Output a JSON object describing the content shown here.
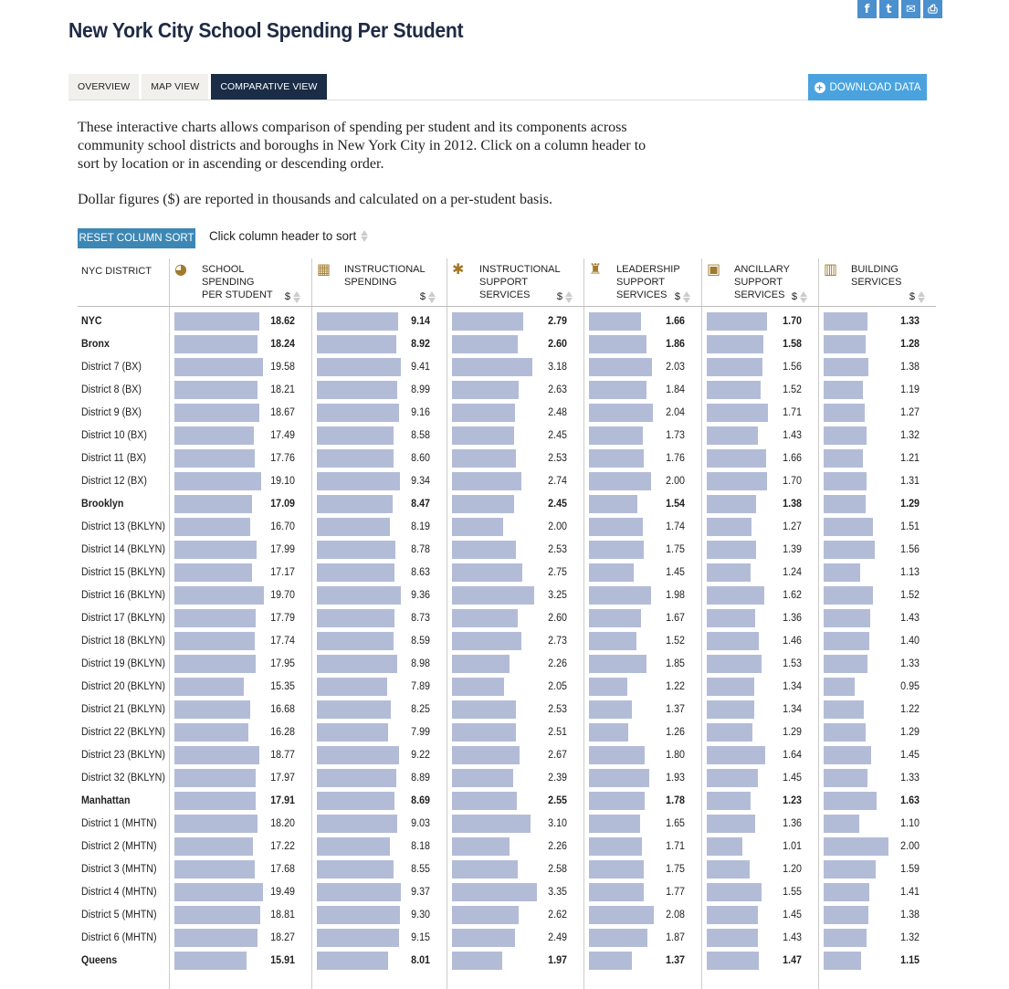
{
  "title": "New York City School Spending Per Student",
  "social": [
    {
      "icon": "facebook-icon",
      "glyph": "f"
    },
    {
      "icon": "twitter-icon",
      "glyph": "t"
    },
    {
      "icon": "email-icon",
      "glyph": "✉"
    },
    {
      "icon": "print-icon",
      "glyph": "⎙"
    }
  ],
  "tabs": [
    {
      "label": "Overview",
      "active": false
    },
    {
      "label": "Map View",
      "active": false
    },
    {
      "label": "Comparative View",
      "active": true
    }
  ],
  "download_label": "Download Data",
  "intro": "These interactive charts allows comparison of spending per student and its components across community school districts and boroughs in New York City in 2012. Click on a column header to sort by location or in ascending or descending order.",
  "intro2": "Dollar figures ($) are reported in thousands and calculated on a per-student basis.",
  "reset_label": "Reset Column Sort",
  "sort_hint": "Click column header to sort",
  "district_header": "NYC District",
  "currency_symbol": "$",
  "bar_color": "#b3bcd7",
  "icon_color": "#a27a2c",
  "columns": [
    {
      "key": "total",
      "icon": "pie-chart-icon",
      "glyph": "◕",
      "lines": [
        "School",
        "Spending",
        "Per Student"
      ],
      "max": 20.5
    },
    {
      "key": "instructional",
      "icon": "classroom-icon",
      "glyph": "▦",
      "lines": [
        "Instructional",
        "Spending"
      ],
      "max": 9.6
    },
    {
      "key": "support",
      "icon": "runner-icon",
      "glyph": "✱",
      "lines": [
        "Instructional",
        "Support",
        "Services"
      ],
      "max": 3.45
    },
    {
      "key": "leadership",
      "icon": "trophy-icon",
      "glyph": "♜",
      "lines": [
        "Leadership",
        "Support",
        "Services"
      ],
      "max": 2.2
    },
    {
      "key": "ancillary",
      "icon": "bus-icon",
      "glyph": "▣",
      "lines": [
        "Ancillary",
        "Support",
        "Services"
      ],
      "max": 1.9
    },
    {
      "key": "building",
      "icon": "building-icon",
      "glyph": "▥",
      "lines": [
        "Building",
        "Services"
      ],
      "max": 2.1
    }
  ],
  "rows": [
    {
      "name": "NYC",
      "bold": true,
      "values": [
        18.62,
        9.14,
        2.79,
        1.66,
        1.7,
        1.33
      ]
    },
    {
      "name": "Bronx",
      "bold": true,
      "values": [
        18.24,
        8.92,
        2.6,
        1.86,
        1.58,
        1.28
      ]
    },
    {
      "name": "District 7 (BX)",
      "bold": false,
      "values": [
        19.58,
        9.41,
        3.18,
        2.03,
        1.56,
        1.38
      ]
    },
    {
      "name": "District 8 (BX)",
      "bold": false,
      "values": [
        18.21,
        8.99,
        2.63,
        1.84,
        1.52,
        1.19
      ]
    },
    {
      "name": "District 9 (BX)",
      "bold": false,
      "values": [
        18.67,
        9.16,
        2.48,
        2.04,
        1.71,
        1.27
      ]
    },
    {
      "name": "District 10 (BX)",
      "bold": false,
      "values": [
        17.49,
        8.58,
        2.45,
        1.73,
        1.43,
        1.32
      ]
    },
    {
      "name": "District 11 (BX)",
      "bold": false,
      "values": [
        17.76,
        8.6,
        2.53,
        1.76,
        1.66,
        1.21
      ]
    },
    {
      "name": "District 12 (BX)",
      "bold": false,
      "values": [
        19.1,
        9.34,
        2.74,
        2.0,
        1.7,
        1.31
      ]
    },
    {
      "name": "Brooklyn",
      "bold": true,
      "values": [
        17.09,
        8.47,
        2.45,
        1.54,
        1.38,
        1.29
      ]
    },
    {
      "name": "District 13 (BKLYN)",
      "bold": false,
      "values": [
        16.7,
        8.19,
        2.0,
        1.74,
        1.27,
        1.51
      ]
    },
    {
      "name": "District 14 (BKLYN)",
      "bold": false,
      "values": [
        17.99,
        8.78,
        2.53,
        1.75,
        1.39,
        1.56
      ]
    },
    {
      "name": "District 15 (BKLYN)",
      "bold": false,
      "values": [
        17.17,
        8.63,
        2.75,
        1.45,
        1.24,
        1.13
      ]
    },
    {
      "name": "District 16 (BKLYN)",
      "bold": false,
      "values": [
        19.7,
        9.36,
        3.25,
        1.98,
        1.62,
        1.52
      ]
    },
    {
      "name": "District 17 (BKLYN)",
      "bold": false,
      "values": [
        17.79,
        8.73,
        2.6,
        1.67,
        1.36,
        1.43
      ]
    },
    {
      "name": "District 18 (BKLYN)",
      "bold": false,
      "values": [
        17.74,
        8.59,
        2.73,
        1.52,
        1.46,
        1.4
      ]
    },
    {
      "name": "District 19 (BKLYN)",
      "bold": false,
      "values": [
        17.95,
        8.98,
        2.26,
        1.85,
        1.53,
        1.33
      ]
    },
    {
      "name": "District 20 (BKLYN)",
      "bold": false,
      "values": [
        15.35,
        7.89,
        2.05,
        1.22,
        1.34,
        0.95
      ]
    },
    {
      "name": "District 21 (BKLYN)",
      "bold": false,
      "values": [
        16.68,
        8.25,
        2.53,
        1.37,
        1.34,
        1.22
      ]
    },
    {
      "name": "District 22 (BKLYN)",
      "bold": false,
      "values": [
        16.28,
        7.99,
        2.51,
        1.26,
        1.29,
        1.29
      ]
    },
    {
      "name": "District 23 (BKLYN)",
      "bold": false,
      "values": [
        18.77,
        9.22,
        2.67,
        1.8,
        1.64,
        1.45
      ]
    },
    {
      "name": "District 32 (BKLYN)",
      "bold": false,
      "values": [
        17.97,
        8.89,
        2.39,
        1.93,
        1.45,
        1.33
      ]
    },
    {
      "name": "Manhattan",
      "bold": true,
      "values": [
        17.91,
        8.69,
        2.55,
        1.78,
        1.23,
        1.63
      ]
    },
    {
      "name": "District 1 (MHTN)",
      "bold": false,
      "values": [
        18.2,
        9.03,
        3.1,
        1.65,
        1.36,
        1.1
      ]
    },
    {
      "name": "District 2 (MHTN)",
      "bold": false,
      "values": [
        17.22,
        8.18,
        2.26,
        1.71,
        1.01,
        2.0
      ]
    },
    {
      "name": "District 3 (MHTN)",
      "bold": false,
      "values": [
        17.68,
        8.55,
        2.58,
        1.75,
        1.2,
        1.59
      ]
    },
    {
      "name": "District 4 (MHTN)",
      "bold": false,
      "values": [
        19.49,
        9.37,
        3.35,
        1.77,
        1.55,
        1.41
      ]
    },
    {
      "name": "District 5 (MHTN)",
      "bold": false,
      "values": [
        18.81,
        9.3,
        2.62,
        2.08,
        1.45,
        1.38
      ]
    },
    {
      "name": "District 6 (MHTN)",
      "bold": false,
      "values": [
        18.27,
        9.15,
        2.49,
        1.87,
        1.43,
        1.32
      ]
    },
    {
      "name": "Queens",
      "bold": true,
      "values": [
        15.91,
        8.01,
        1.97,
        1.37,
        1.47,
        1.15
      ]
    }
  ]
}
